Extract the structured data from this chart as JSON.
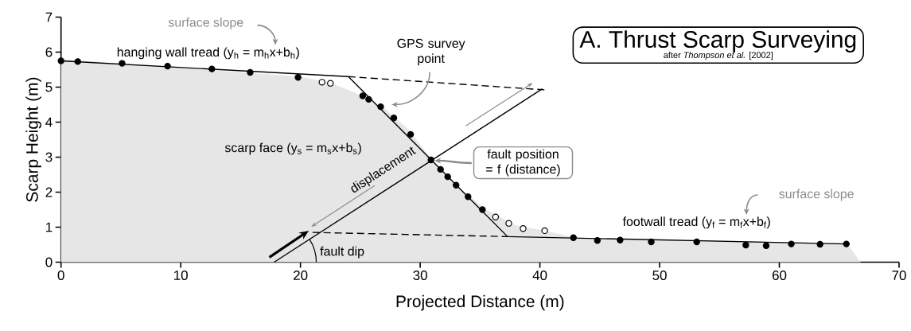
{
  "chart_data": {
    "type": "scatter",
    "title": "A. Thrust Scarp Surveying",
    "subtitle": "after *Thompson et al.* [2002]",
    "xlabel": "Projected Distance (m)",
    "ylabel": "Scarp Height (m)",
    "marker": "circle",
    "xlim": [
      0,
      70
    ],
    "ylim": [
      0,
      7
    ],
    "xticks": [
      0,
      10,
      20,
      30,
      40,
      50,
      60,
      70
    ],
    "yticks": [
      0,
      1,
      2,
      3,
      4,
      5,
      6,
      7
    ],
    "annotations": [
      "hanging wall tread (y$_{h}$ = m$_{h}$x+b$_{h}$)",
      "scarp face (y$_{s}$ = m$_{s}$x+b$_{s}$)",
      "footwall tread (y$_{f}$ = m$_{f}$x+b$_{f}$)",
      "GPS survey point",
      "fault position = f (distance)",
      "displacement",
      {
        "text": "fault dip",
        "x": 20.6,
        "y": 0.62
      },
      "surface slope",
      "surface slope"
    ],
    "series": [
      {
        "type": "area",
        "marker": "none",
        "color": "#e6e6e6",
        "x": [
          0,
          20,
          22.5,
          24.5,
          27,
          29,
          31,
          33,
          35.5,
          38,
          41,
          43,
          55,
          65.6,
          66.8
        ],
        "values": [
          5.8,
          5.3,
          5.12,
          4.85,
          4.4,
          3.8,
          2.92,
          2.2,
          1.5,
          1.05,
          0.85,
          0.7,
          0.6,
          0.55,
          0
        ]
      },
      {
        "type": "line",
        "marker": "none",
        "color": "#000000",
        "x": [
          0,
          24
        ],
        "values": [
          5.75,
          5.3
        ]
      },
      {
        "type": "line",
        "marker": "none",
        "color": "#000000",
        "x": [
          24,
          37.3
        ],
        "values": [
          5.3,
          0.73
        ]
      },
      {
        "type": "line",
        "marker": "none",
        "color": "#000000",
        "x": [
          37.3,
          65.6
        ],
        "values": [
          0.73,
          0.52
        ]
      },
      {
        "type": "line",
        "marker": "none",
        "color": "#000000",
        "line_style": "dashed",
        "x": [
          24,
          40.5
        ],
        "values": [
          5.3,
          4.92
        ]
      },
      {
        "type": "line",
        "marker": "none",
        "color": "#000000",
        "line_style": "dashed",
        "x": [
          21,
          37.3
        ],
        "values": [
          0.85,
          0.73
        ]
      },
      {
        "type": "line",
        "marker": "none",
        "color": "#000000",
        "x": [
          17.8,
          40.2
        ],
        "values": [
          0,
          4.95
        ]
      },
      {
        "color": "#000000",
        "x": [
          0,
          1.4,
          5.1,
          8.9,
          12.6,
          15.8,
          19.8,
          25.2,
          25.7,
          26.7,
          27.8,
          29.2,
          30.9,
          31.7,
          32.3,
          33.0,
          34.0,
          35.2,
          42.8,
          44.8,
          46.7,
          49.3,
          53.1,
          57.2,
          58.9,
          61.0,
          63.4,
          65.6
        ],
        "values": [
          5.75,
          5.73,
          5.68,
          5.6,
          5.52,
          5.42,
          5.28,
          4.75,
          4.65,
          4.44,
          4.12,
          3.65,
          2.92,
          2.65,
          2.44,
          2.2,
          1.87,
          1.5,
          0.7,
          0.62,
          0.63,
          0.58,
          0.58,
          0.49,
          0.47,
          0.52,
          0.51,
          0.52
        ]
      },
      {
        "color": "#ffffff",
        "x": [
          21.8,
          22.5,
          36.3,
          37.4,
          38.6,
          40.4
        ],
        "values": [
          5.14,
          5.11,
          1.29,
          1.11,
          0.96,
          0.9
        ]
      }
    ]
  }
}
